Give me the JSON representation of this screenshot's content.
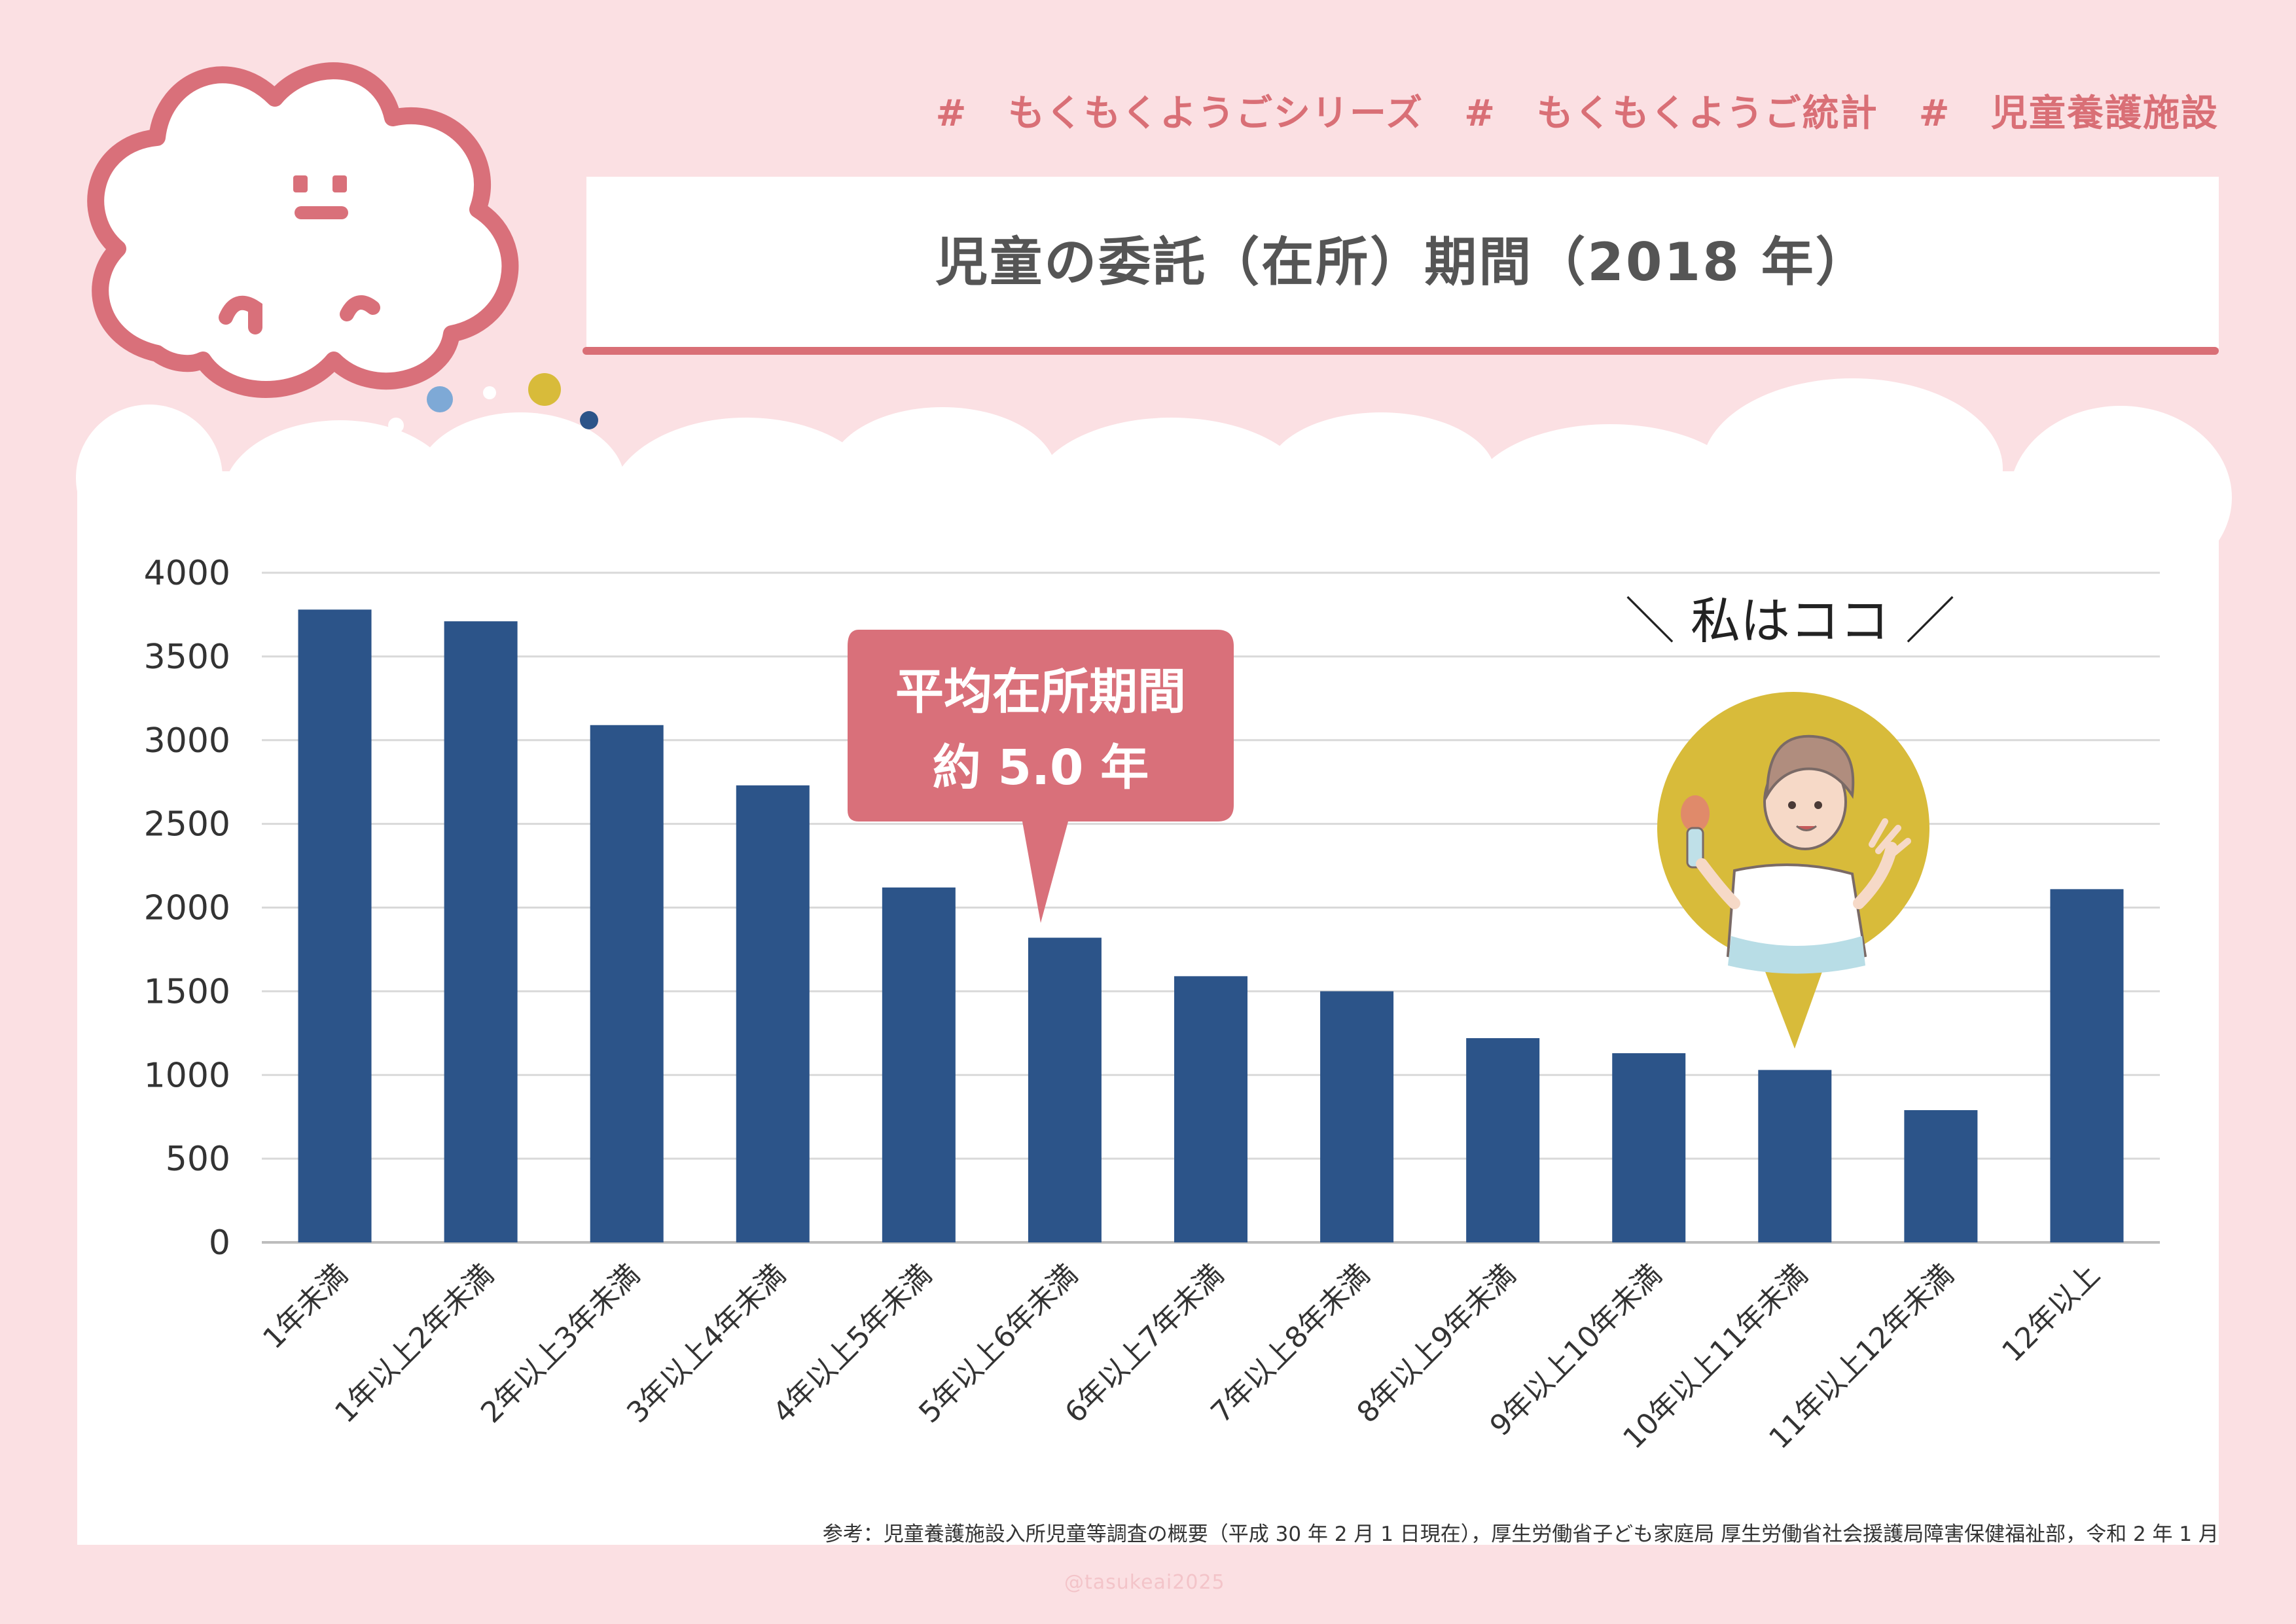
{
  "hashtags": [
    "# もくもくようごシリーズ",
    "# もくもくようご統計",
    "# 児童養護施設"
  ],
  "title": "児童の委託（在所）期間（2018 年）",
  "callouts": {
    "average_line1": "平均在所期間",
    "average_line2": "約 5.0 年",
    "me": "＼ 私はココ ／"
  },
  "footnote": "参考：児童養護施設入所児童等調査の概要（平成 30 年 2 月 1 日現在），厚生労働省子ども家庭局 厚生労働省社会援護局障害保健福祉部，令和 2 年 1 月",
  "watermark": "@tasukeai2025",
  "colors": {
    "bar": "#2c5489",
    "accent": "#d96f76",
    "background": "#fbe0e3",
    "highlight_circle": "#d8bb3a"
  },
  "icons": [
    "cloud-mascot-icon",
    "reporter-woman-illustration"
  ],
  "chart_data": {
    "type": "bar",
    "title": "児童の委託（在所）期間（2018 年）",
    "xlabel": "",
    "ylabel": "",
    "ylim": [
      0,
      4000
    ],
    "yticks": [
      0,
      500,
      1000,
      1500,
      2000,
      2500,
      3000,
      3500,
      4000
    ],
    "grid": true,
    "categories": [
      "1年未満",
      "1年以上2年未満",
      "2年以上3年未満",
      "3年以上4年未満",
      "4年以上5年未満",
      "5年以上6年未満",
      "6年以上7年未満",
      "7年以上8年未満",
      "8年以上9年未満",
      "9年以上10年未満",
      "10年以上11年未満",
      "11年以上12年未満",
      "12年以上"
    ],
    "values": [
      3780,
      3710,
      3090,
      2730,
      2120,
      1820,
      1590,
      1500,
      1220,
      1130,
      1030,
      790,
      2110
    ]
  }
}
